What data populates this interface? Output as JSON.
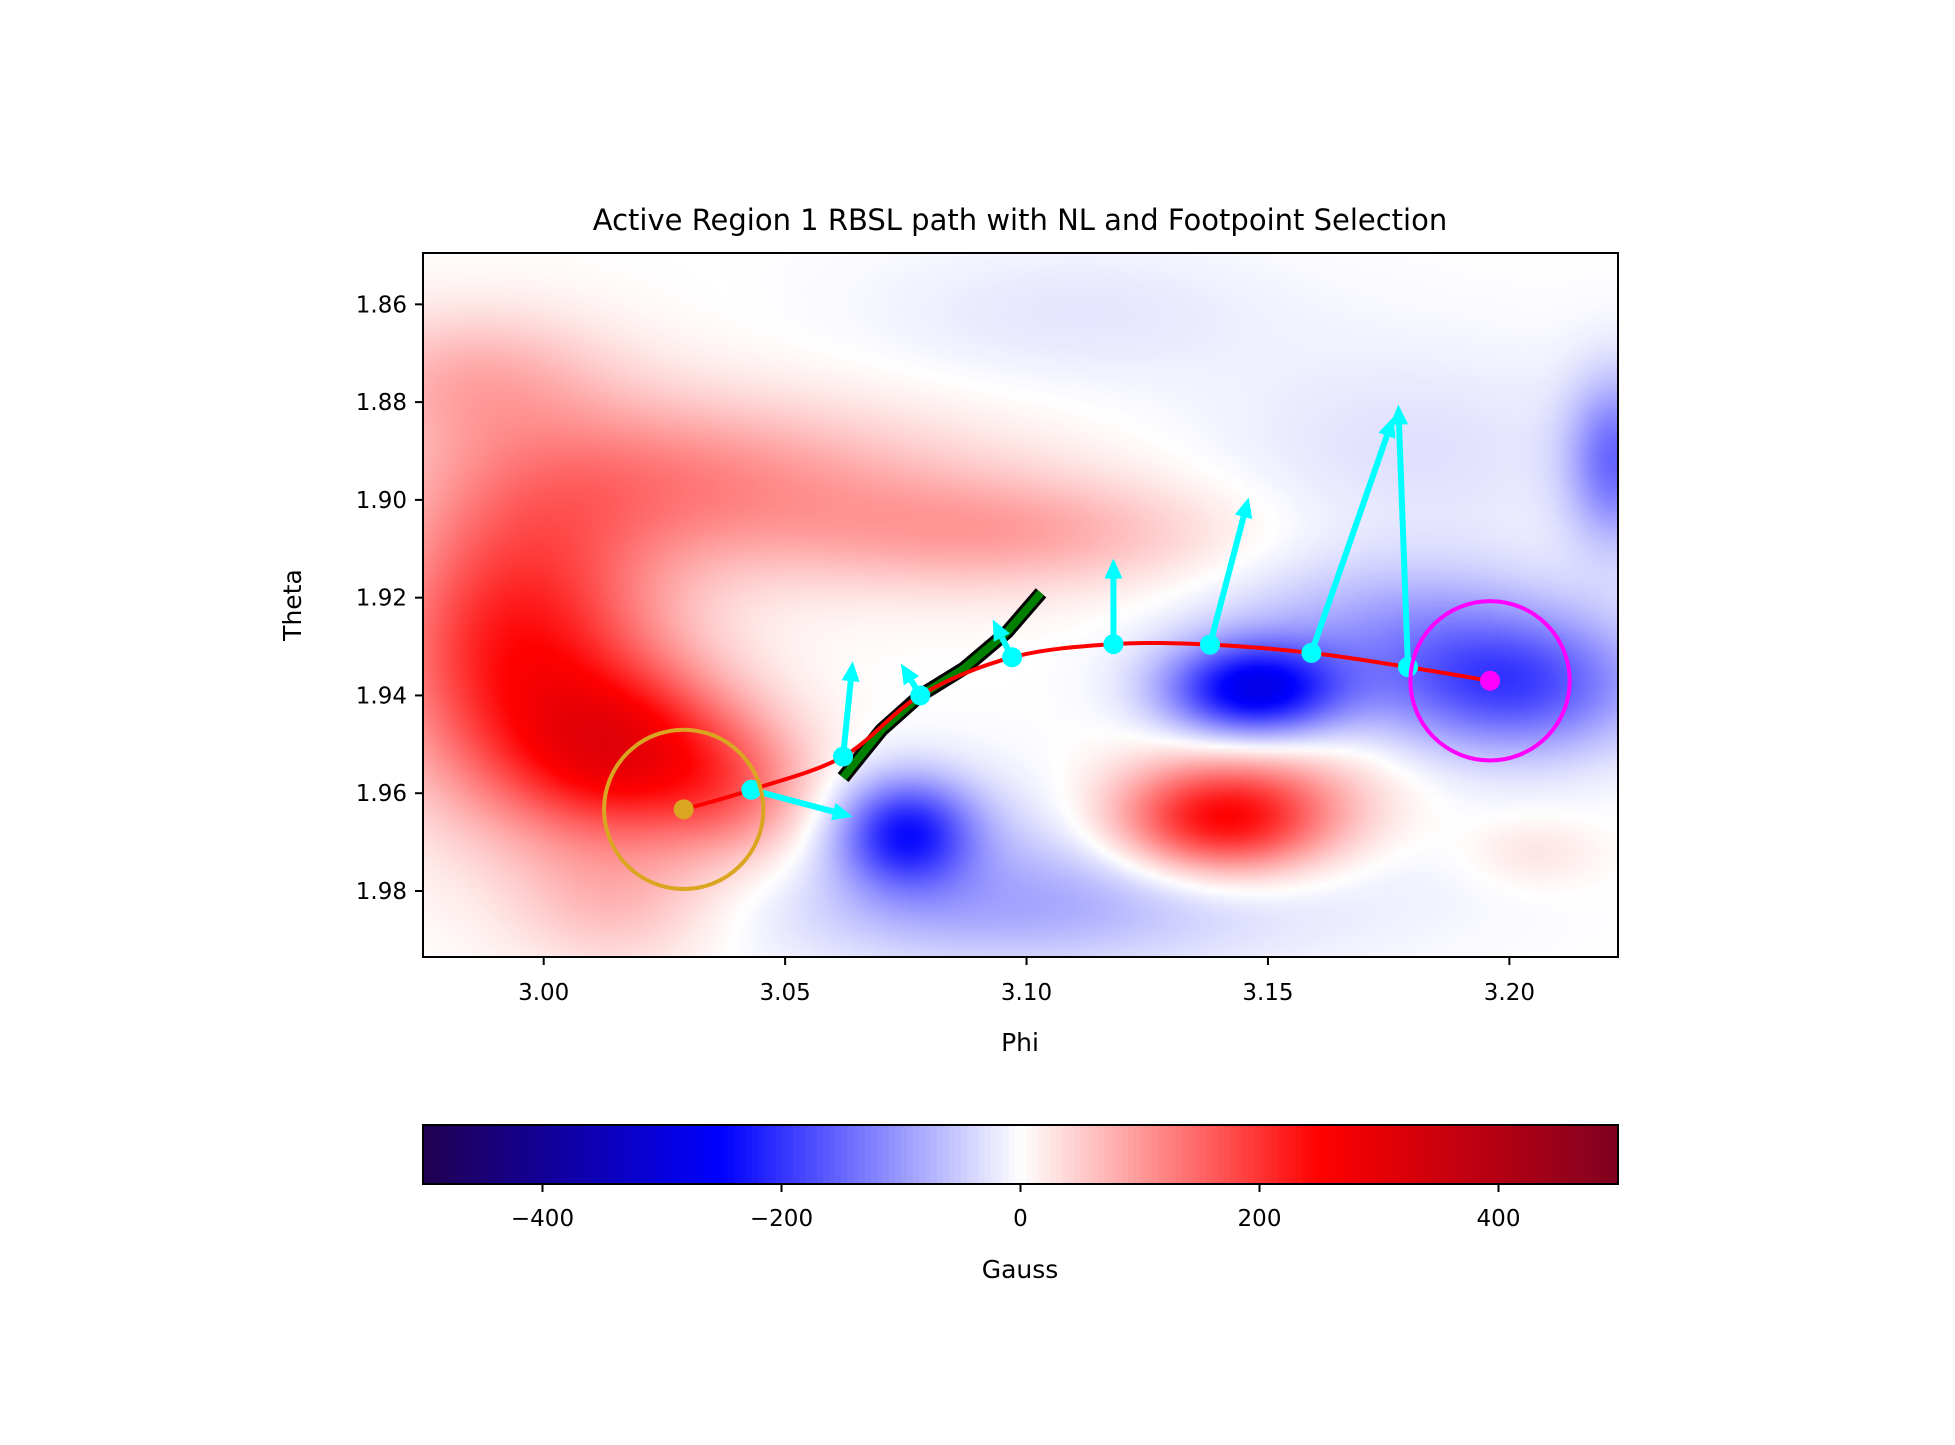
{
  "chart_data": {
    "type": "heatmap",
    "title": "Active Region 1 RBSL path with NL and Footpoint Selection",
    "xlabel": "Phi",
    "ylabel": "Theta",
    "xlim": [
      2.975,
      3.2225
    ],
    "ylim": [
      1.9935,
      1.8495
    ],
    "y_inverted": true,
    "xticks": [
      3.0,
      3.05,
      3.1,
      3.15,
      3.2
    ],
    "xtick_labels": [
      "3.00",
      "3.05",
      "3.10",
      "3.15",
      "3.20"
    ],
    "yticks": [
      1.86,
      1.88,
      1.9,
      1.92,
      1.94,
      1.96,
      1.98
    ],
    "ytick_labels": [
      "1.86",
      "1.88",
      "1.90",
      "1.92",
      "1.94",
      "1.96",
      "1.98"
    ],
    "colorbar": {
      "label": "Gauss",
      "range": [
        -500,
        500
      ],
      "ticks": [
        -400,
        -200,
        0,
        200,
        400
      ],
      "tick_labels": [
        "−400",
        "−200",
        "0",
        "200",
        "400"
      ],
      "colormap": "seismic",
      "colormap_stops": [
        "#200050",
        "#0000ff",
        "#ffffff",
        "#ff0000",
        "#800020"
      ]
    },
    "field_blobs": [
      {
        "phi": 2.995,
        "theta": 1.93,
        "gauss": 230,
        "sigma_phi": 0.02,
        "sigma_theta": 0.022
      },
      {
        "phi": 3.018,
        "theta": 1.952,
        "gauss": 220,
        "sigma_phi": 0.017,
        "sigma_theta": 0.012
      },
      {
        "phi": 2.985,
        "theta": 1.875,
        "gauss": 70,
        "sigma_phi": 0.02,
        "sigma_theta": 0.01
      },
      {
        "phi": 3.04,
        "theta": 1.96,
        "gauss": 90,
        "sigma_phi": 0.012,
        "sigma_theta": 0.01
      },
      {
        "phi": 3.015,
        "theta": 1.982,
        "gauss": 60,
        "sigma_phi": 0.015,
        "sigma_theta": 0.01
      },
      {
        "phi": 3.02,
        "theta": 1.895,
        "gauss": 85,
        "sigma_phi": 0.03,
        "sigma_theta": 0.012
      },
      {
        "phi": 3.06,
        "theta": 1.9,
        "gauss": 55,
        "sigma_phi": 0.035,
        "sigma_theta": 0.012
      },
      {
        "phi": 3.1,
        "theta": 1.907,
        "gauss": 70,
        "sigma_phi": 0.03,
        "sigma_theta": 0.008
      },
      {
        "phi": 3.14,
        "theta": 1.966,
        "gauss": 240,
        "sigma_phi": 0.016,
        "sigma_theta": 0.008
      },
      {
        "phi": 3.15,
        "theta": 1.96,
        "gauss": 60,
        "sigma_phi": 0.02,
        "sigma_theta": 0.01
      },
      {
        "phi": 3.205,
        "theta": 1.972,
        "gauss": 30,
        "sigma_phi": 0.01,
        "sigma_theta": 0.005
      },
      {
        "phi": 3.075,
        "theta": 1.968,
        "gauss": -210,
        "sigma_phi": 0.01,
        "sigma_theta": 0.008
      },
      {
        "phi": 3.147,
        "theta": 1.939,
        "gauss": -270,
        "sigma_phi": 0.013,
        "sigma_theta": 0.007
      },
      {
        "phi": 3.2,
        "theta": 1.938,
        "gauss": -180,
        "sigma_phi": 0.02,
        "sigma_theta": 0.01
      },
      {
        "phi": 3.222,
        "theta": 1.892,
        "gauss": -140,
        "sigma_phi": 0.007,
        "sigma_theta": 0.012
      },
      {
        "phi": 3.175,
        "theta": 1.925,
        "gauss": -70,
        "sigma_phi": 0.025,
        "sigma_theta": 0.01
      },
      {
        "phi": 3.12,
        "theta": 1.975,
        "gauss": -60,
        "sigma_phi": 0.04,
        "sigma_theta": 0.012
      },
      {
        "phi": 3.09,
        "theta": 1.985,
        "gauss": -50,
        "sigma_phi": 0.03,
        "sigma_theta": 0.008
      },
      {
        "phi": 3.18,
        "theta": 1.89,
        "gauss": -30,
        "sigma_phi": 0.03,
        "sigma_theta": 0.015
      },
      {
        "phi": 3.11,
        "theta": 1.862,
        "gauss": -25,
        "sigma_phi": 0.03,
        "sigma_theta": 0.01
      }
    ],
    "path": {
      "color": "#ff0000",
      "points": [
        [
          3.029,
          1.9633
        ],
        [
          3.043,
          1.9593
        ],
        [
          3.062,
          1.9525
        ],
        [
          3.078,
          1.94
        ],
        [
          3.097,
          1.9322
        ],
        [
          3.118,
          1.9295
        ],
        [
          3.138,
          1.9296
        ],
        [
          3.159,
          1.9313
        ],
        [
          3.179,
          1.9342
        ],
        [
          3.196,
          1.937
        ]
      ]
    },
    "vectors": {
      "color": "#00ffff",
      "items": [
        {
          "phi": 3.043,
          "theta": 1.9593,
          "end_phi": 3.064,
          "theta_end": 1.9648
        },
        {
          "phi": 3.062,
          "theta": 1.9525,
          "end_phi": 3.064,
          "theta_end": 1.933
        },
        {
          "phi": 3.078,
          "theta": 1.94,
          "end_phi": 3.074,
          "theta_end": 1.9335
        },
        {
          "phi": 3.097,
          "theta": 1.9322,
          "end_phi": 3.093,
          "theta_end": 1.9245
        },
        {
          "phi": 3.118,
          "theta": 1.9295,
          "end_phi": 3.118,
          "theta_end": 1.912
        },
        {
          "phi": 3.138,
          "theta": 1.9296,
          "end_phi": 3.146,
          "theta_end": 1.8995
        },
        {
          "phi": 3.159,
          "theta": 1.9313,
          "end_phi": 3.176,
          "theta_end": 1.883
        },
        {
          "phi": 3.179,
          "theta": 1.9342,
          "end_phi": 3.177,
          "theta_end": 1.8805
        }
      ]
    },
    "neutral_line": {
      "color": "#008000",
      "outline": "#000000",
      "points": [
        [
          3.062,
          1.9568
        ],
        [
          3.07,
          1.947
        ],
        [
          3.078,
          1.94
        ],
        [
          3.087,
          1.9345
        ],
        [
          3.096,
          1.927
        ],
        [
          3.103,
          1.919
        ]
      ]
    },
    "footpoints": [
      {
        "name": "start",
        "phi": 3.029,
        "theta": 1.9633,
        "radius_phi": 0.0165,
        "color": "#daa520"
      },
      {
        "name": "end",
        "phi": 3.196,
        "theta": 1.937,
        "radius_phi": 0.0165,
        "color": "#ff00ff"
      }
    ]
  }
}
